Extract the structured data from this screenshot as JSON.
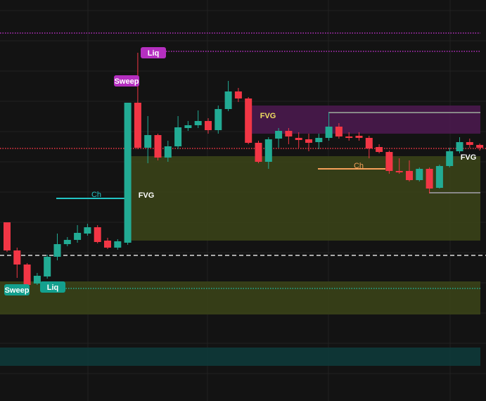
{
  "chart_data": {
    "type": "candlestick",
    "up_color": "#22ab94",
    "down_color": "#f23645",
    "grid": true,
    "ylim": [
      0,
      570
    ],
    "open": [
      254,
      214,
      194,
      167,
      177,
      205,
      223,
      229,
      238,
      247,
      228,
      218,
      225,
      424,
      360,
      378,
      346,
      362,
      388,
      392,
      398,
      385,
      415,
      440,
      430,
      367,
      340,
      373,
      384,
      374,
      372,
      368,
      374,
      390,
      376,
      377,
      374,
      361,
      354,
      327,
      327,
      314,
      330,
      303,
      334,
      355,
      368,
      364
    ],
    "high": [
      254,
      218,
      196,
      182,
      208,
      238,
      233,
      250,
      252,
      250,
      232,
      230,
      424,
      495,
      405,
      380,
      370,
      405,
      398,
      413,
      402,
      420,
      455,
      445,
      432,
      370,
      375,
      388,
      388,
      382,
      380,
      380,
      410,
      395,
      382,
      382,
      377,
      365,
      356,
      345,
      342,
      332,
      332,
      336,
      360,
      375,
      373,
      366
    ],
    "low": [
      212,
      175,
      162,
      165,
      174,
      200,
      220,
      225,
      235,
      224,
      216,
      215,
      222,
      358,
      338,
      342,
      340,
      358,
      384,
      388,
      380,
      380,
      412,
      425,
      365,
      338,
      330,
      360,
      365,
      360,
      355,
      358,
      370,
      373,
      370,
      370,
      345,
      352,
      323,
      323,
      312,
      312,
      295,
      302,
      332,
      352,
      360,
      356
    ],
    "close": [
      214,
      194,
      165,
      178,
      205,
      223,
      229,
      239,
      247,
      226,
      218,
      227,
      424,
      360,
      378,
      346,
      362,
      389,
      392,
      398,
      385,
      415,
      440,
      430,
      367,
      340,
      372,
      384,
      376,
      371,
      367,
      374,
      390,
      376,
      374,
      374,
      359,
      354,
      327,
      325,
      314,
      330,
      302,
      334,
      355,
      368,
      364,
      360
    ],
    "zones": [
      {
        "top": 420,
        "bottom": 380,
        "color": "#4a1a4e"
      },
      {
        "top": 348,
        "bottom": 228,
        "color": "#3a4218"
      },
      {
        "top": 170,
        "bottom": 123,
        "color": "#3a4218"
      },
      {
        "top": 76,
        "bottom": 50,
        "color": "#0e3a3a"
      }
    ],
    "levels": [
      {
        "value": 523,
        "color": "#b52fc0",
        "dash": "dotted"
      },
      {
        "value": 497,
        "color": "#b52fc0",
        "dash": "dotted"
      },
      {
        "value": 359,
        "color": "#f23645",
        "dash": "dotted"
      },
      {
        "value": 207,
        "color": "#dddddd",
        "dash": "dashed"
      },
      {
        "value": 160,
        "color": "#22ab94",
        "dash": "dotted"
      },
      {
        "value": 288,
        "color": "#22c5c5",
        "dash": "solid"
      },
      {
        "value": 330,
        "color": "#f5a05a",
        "dash": "solid"
      },
      {
        "value": 410,
        "color": "#888888",
        "dash": "solid"
      },
      {
        "value": 296,
        "color": "#888888",
        "dash": "solid"
      }
    ],
    "annotations": [
      {
        "text": "Sweep",
        "color": "#b52fc0"
      },
      {
        "text": "Liq",
        "color": "#b52fc0"
      },
      {
        "text": "Ch",
        "color": "#22c5c5"
      },
      {
        "text": "FVG",
        "color": "#ffffff"
      },
      {
        "text": "FVG",
        "color": "#f0e060"
      },
      {
        "text": "Ch",
        "color": "#f5a05a"
      },
      {
        "text": "Sweep",
        "color": "#13a08e"
      },
      {
        "text": "Liq",
        "color": "#13a08e"
      },
      {
        "text": "FVG",
        "color": "#ffffff"
      }
    ]
  }
}
